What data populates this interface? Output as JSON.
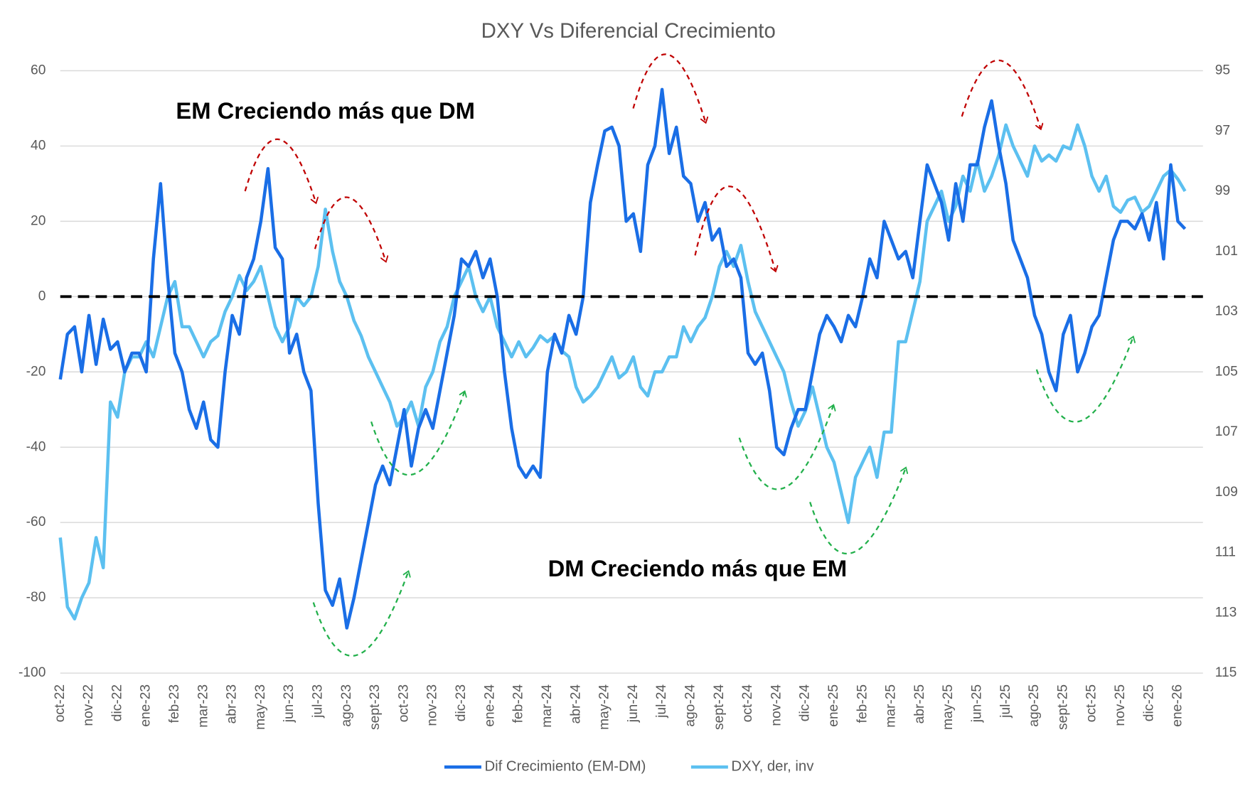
{
  "chart_data": {
    "type": "line",
    "title": "DXY Vs Diferencial Crecimiento",
    "annotations": [
      "EM Creciendo más que DM",
      "DM Creciendo más que EM"
    ],
    "categories": [
      "oct-22",
      null,
      null,
      null,
      "nov-22",
      null,
      null,
      null,
      "dic-22",
      null,
      null,
      null,
      "ene-23",
      null,
      null,
      null,
      "feb-23",
      null,
      null,
      null,
      "mar-23",
      null,
      null,
      null,
      "abr-23",
      null,
      null,
      null,
      "may-23",
      null,
      null,
      null,
      "jun-23",
      null,
      null,
      null,
      "jul-23",
      null,
      null,
      null,
      "ago-23",
      null,
      null,
      null,
      "sept-23",
      null,
      null,
      null,
      "oct-23",
      null,
      null,
      null,
      "nov-23",
      null,
      null,
      null,
      "dic-23",
      null,
      null,
      null,
      "ene-24",
      null,
      null,
      null,
      "feb-24",
      null,
      null,
      null,
      "mar-24",
      null,
      null,
      null,
      "abr-24",
      null,
      null,
      null,
      "may-24",
      null,
      null,
      null,
      "jun-24",
      null,
      null,
      null,
      "jul-24",
      null,
      null,
      null,
      "ago-24",
      null,
      null,
      null,
      "sept-24",
      null,
      null,
      null,
      "oct-24",
      null,
      null,
      null,
      "nov-24",
      null,
      null,
      null,
      "dic-24",
      null,
      null,
      null,
      "ene-25",
      null,
      null,
      null,
      "feb-25",
      null,
      null,
      null,
      "mar-25",
      null,
      null,
      null,
      "abr-25",
      null,
      null,
      null,
      "may-25",
      null,
      null,
      null,
      "jun-25",
      null,
      null,
      null,
      "jul-25",
      null,
      null,
      null,
      "ago-25",
      null,
      null,
      null,
      "sept-25",
      null,
      null,
      null,
      "oct-25",
      null,
      null,
      null,
      "nov-25",
      null,
      null,
      null,
      "dic-25",
      null,
      null,
      null,
      "ene-26",
      null
    ],
    "series": [
      {
        "name": "Dif Crecimiento (EM-DM)",
        "color": "#1a6ee6",
        "axis": "y",
        "values": [
          -22,
          -10,
          -8,
          -20,
          -5,
          -18,
          -6,
          -14,
          -12,
          -20,
          -15,
          -15,
          -20,
          10,
          30,
          5,
          -15,
          -20,
          -30,
          -35,
          -28,
          -38,
          -40,
          -20,
          -5,
          -10,
          5,
          10,
          20,
          34,
          13,
          10,
          -15,
          -10,
          -20,
          -25,
          -55,
          -78,
          -82,
          -75,
          -88,
          -80,
          -70,
          -60,
          -50,
          -45,
          -50,
          -40,
          -30,
          -45,
          -35,
          -30,
          -35,
          -25,
          -15,
          -5,
          10,
          8,
          12,
          5,
          10,
          0,
          -20,
          -35,
          -45,
          -48,
          -45,
          -48,
          -20,
          -10,
          -15,
          -5,
          -10,
          0,
          25,
          35,
          44,
          45,
          40,
          20,
          22,
          12,
          35,
          40,
          55,
          38,
          45,
          32,
          30,
          20,
          25,
          15,
          18,
          8,
          10,
          5,
          -15,
          -18,
          -15,
          -25,
          -40,
          -42,
          -35,
          -30,
          -30,
          -20,
          -10,
          -5,
          -8,
          -12,
          -5,
          -8,
          0,
          10,
          5,
          20,
          15,
          10,
          12,
          5,
          20,
          35,
          30,
          25,
          15,
          30,
          20,
          35,
          35,
          45,
          52,
          40,
          30,
          15,
          10,
          5,
          -5,
          -10,
          -20,
          -25,
          -10,
          -5,
          -20,
          -15,
          -8,
          -5,
          5,
          15,
          20,
          20,
          18,
          22,
          15,
          25,
          10,
          35,
          20,
          18
        ]
      },
      {
        "name": "DXY, der, inv",
        "color": "#5cc0f0",
        "axis": "y2",
        "values": [
          110.5,
          112.8,
          113.2,
          112.5,
          112,
          110.5,
          111.5,
          106,
          106.5,
          105,
          104.5,
          104.5,
          104,
          104.5,
          103.5,
          102.5,
          102,
          103.5,
          103.5,
          104,
          104.5,
          104,
          103.8,
          103,
          102.5,
          101.8,
          102.3,
          102,
          101.5,
          102.5,
          103.5,
          104,
          103.5,
          102.5,
          102.8,
          102.5,
          101.5,
          99.6,
          101,
          102,
          102.5,
          103.3,
          103.8,
          104.5,
          105,
          105.5,
          106,
          106.8,
          106.5,
          106,
          106.8,
          105.5,
          105,
          104,
          103.5,
          102.5,
          102,
          101.5,
          102.5,
          103,
          102.5,
          103.5,
          104,
          104.5,
          104,
          104.5,
          104.2,
          103.8,
          104,
          103.8,
          104.3,
          104.5,
          105.5,
          106,
          105.8,
          105.5,
          105,
          104.5,
          105.2,
          105,
          104.5,
          105.5,
          105.8,
          105,
          105,
          104.5,
          104.5,
          103.5,
          104,
          103.5,
          103.2,
          102.5,
          101.5,
          101,
          101.5,
          100.8,
          102,
          103,
          103.5,
          104,
          104.5,
          105,
          106,
          106.8,
          106.3,
          105.5,
          106.5,
          107.5,
          108,
          109,
          110,
          108.5,
          108,
          107.5,
          108.5,
          107,
          107,
          104,
          104,
          103,
          102,
          100,
          99.5,
          99,
          100,
          99.5,
          98.5,
          99,
          98,
          99,
          98.5,
          97.8,
          96.8,
          97.5,
          98,
          98.5,
          97.5,
          98,
          97.8,
          98,
          97.5,
          97.6,
          96.8,
          97.5,
          98.5,
          99,
          98.5,
          99.5,
          99.7,
          99.3,
          99.2,
          99.7,
          99.5,
          99,
          98.5,
          98.3,
          98.6,
          99
        ]
      }
    ],
    "ylim": [
      -100,
      60
    ],
    "yticks": [
      -100,
      -80,
      -60,
      -40,
      -20,
      0,
      20,
      40,
      60
    ],
    "y2lim": [
      115,
      95
    ],
    "y2ticks": [
      115,
      113,
      111,
      109,
      107,
      105,
      103,
      101,
      99,
      97,
      95
    ],
    "reference_line": 0,
    "grid": true
  }
}
